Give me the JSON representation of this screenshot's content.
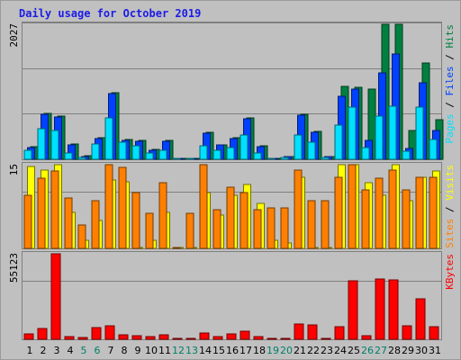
{
  "chart_data": {
    "type": "bar",
    "title": "Daily usage for October 2019",
    "categories": [
      "1",
      "2",
      "3",
      "4",
      "5",
      "6",
      "7",
      "8",
      "9",
      "10",
      "11",
      "12",
      "13",
      "14",
      "15",
      "16",
      "17",
      "18",
      "19",
      "20",
      "21",
      "22",
      "23",
      "24",
      "25",
      "26",
      "27",
      "28",
      "29",
      "30",
      "31"
    ],
    "weekend_days": [
      "5",
      "6",
      "12",
      "13",
      "19",
      "20",
      "26",
      "27"
    ],
    "panels": [
      {
        "name": "pages-files-hits",
        "max_label": "2027",
        "ymax": 2027,
        "legend": [
          {
            "text": "Pages",
            "color": "#00e0ff"
          },
          {
            "text": " / ",
            "color": "#000000"
          },
          {
            "text": "Files",
            "color": "#0040ff"
          },
          {
            "text": " / ",
            "color": "#000000"
          },
          {
            "text": "Hits",
            "color": "#008040"
          }
        ],
        "series": [
          {
            "name": "Hits",
            "color": "#008040",
            "values": [
              190,
              690,
              650,
              230,
              50,
              320,
              1000,
              300,
              280,
              150,
              280,
              0,
              0,
              400,
              220,
              320,
              620,
              200,
              0,
              40,
              670,
              420,
              40,
              1100,
              1080,
              1050,
              2027,
              2027,
              430,
              1450,
              600
            ]
          },
          {
            "name": "Files",
            "color": "#0040ff",
            "values": [
              180,
              680,
              630,
              220,
              45,
              310,
              990,
              290,
              270,
              140,
              270,
              0,
              0,
              390,
              210,
              310,
              610,
              190,
              0,
              35,
              660,
              410,
              35,
              950,
              1060,
              280,
              1300,
              1580,
              160,
              1150,
              430
            ]
          },
          {
            "name": "Pages",
            "color": "#00e0ff",
            "values": [
              140,
              460,
              430,
              90,
              30,
              230,
              620,
              250,
              200,
              100,
              130,
              0,
              0,
              200,
              140,
              170,
              360,
              100,
              0,
              30,
              370,
              250,
              30,
              510,
              790,
              180,
              650,
              800,
              120,
              790,
              300
            ]
          }
        ]
      },
      {
        "name": "sites-visits",
        "max_label": "15",
        "ymax": 15,
        "legend": [
          {
            "text": "Sites",
            "color": "#ff8000"
          },
          {
            "text": " / ",
            "color": "#000000"
          },
          {
            "text": "Visits",
            "color": "#ffff00"
          }
        ],
        "series": [
          {
            "name": "Visits",
            "color": "#ffff00",
            "values": [
              14.6,
              14,
              15,
              6.5,
              1.5,
              5,
              12.2,
              12,
              0,
              1.5,
              6.5,
              0,
              0,
              10,
              6,
              9.5,
              11.5,
              8,
              1.5,
              1,
              12.8,
              0,
              0,
              15,
              15,
              11.7,
              9.5,
              15,
              8.5,
              12.8,
              13.8
            ]
          },
          {
            "name": "Sites",
            "color": "#ff8000",
            "values": [
              9.5,
              12.5,
              13.8,
              9,
              4.2,
              8.5,
              15,
              14.5,
              10,
              6.3,
              11.7,
              0,
              6.3,
              15,
              7,
              11,
              10,
              7,
              7.2,
              7.2,
              14,
              8.5,
              8.5,
              12.7,
              15,
              10.5,
              12.5,
              14,
              10.5,
              12.8,
              12.7
            ]
          }
        ]
      },
      {
        "name": "kbytes",
        "max_label": "55123",
        "ymax": 55123,
        "legend": [
          {
            "text": "KBytes",
            "color": "#ff0000"
          }
        ],
        "series": [
          {
            "name": "KBytes",
            "color": "#ff0000",
            "values": [
              3500,
              6800,
              55123,
              2000,
              1000,
              7500,
              8600,
              2800,
              2600,
              2000,
              2700,
              0,
              0,
              3800,
              1900,
              3600,
              5400,
              1600,
              0,
              600,
              10000,
              9200,
              700,
              8300,
              38000,
              2100,
              39000,
              38500,
              8700,
              26300,
              8300
            ]
          }
        ]
      }
    ]
  }
}
